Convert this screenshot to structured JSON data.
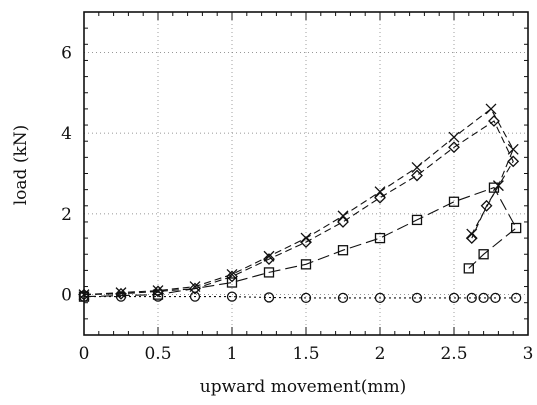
{
  "chart_data": {
    "type": "line",
    "xlabel": "upward movement(mm)",
    "ylabel": "load (kN)",
    "xlim": [
      0,
      3
    ],
    "ylim": [
      -1,
      7
    ],
    "xticks": [
      0,
      0.5,
      1,
      1.5,
      2,
      2.5,
      3
    ],
    "xtick_labels": [
      "0",
      "0.5",
      "1",
      "1.5",
      "2",
      "2.5",
      "3"
    ],
    "yticks": [
      0,
      2,
      4,
      6
    ],
    "ytick_labels": [
      "0",
      "2",
      "4",
      "6"
    ],
    "grid": true,
    "series": [
      {
        "marker": "x",
        "line": "dashed",
        "points": [
          [
            0,
            0
          ],
          [
            0.25,
            0.05
          ],
          [
            0.5,
            0.1
          ],
          [
            0.75,
            0.2
          ],
          [
            1.0,
            0.5
          ],
          [
            1.25,
            0.95
          ],
          [
            1.5,
            1.4
          ],
          [
            1.75,
            1.95
          ],
          [
            2.0,
            2.55
          ],
          [
            2.25,
            3.15
          ],
          [
            2.5,
            3.9
          ],
          [
            2.75,
            4.6
          ],
          [
            2.9,
            3.6
          ],
          [
            2.8,
            2.7
          ],
          [
            2.62,
            1.5
          ]
        ]
      },
      {
        "marker": "diamond",
        "line": "dashed",
        "points": [
          [
            0,
            0
          ],
          [
            0.25,
            0.02
          ],
          [
            0.5,
            0.08
          ],
          [
            0.75,
            0.15
          ],
          [
            1.0,
            0.45
          ],
          [
            1.25,
            0.88
          ],
          [
            1.5,
            1.3
          ],
          [
            1.75,
            1.8
          ],
          [
            2.0,
            2.4
          ],
          [
            2.25,
            2.95
          ],
          [
            2.5,
            3.65
          ],
          [
            2.77,
            4.3
          ],
          [
            2.9,
            3.3
          ],
          [
            2.72,
            2.2
          ],
          [
            2.62,
            1.4
          ]
        ]
      },
      {
        "marker": "square",
        "line": "long-dash",
        "points": [
          [
            0,
            -0.05
          ],
          [
            0.5,
            0.0
          ],
          [
            1.0,
            0.3
          ],
          [
            1.25,
            0.55
          ],
          [
            1.5,
            0.75
          ],
          [
            1.75,
            1.1
          ],
          [
            2.0,
            1.4
          ],
          [
            2.25,
            1.85
          ],
          [
            2.5,
            2.3
          ],
          [
            2.77,
            2.65
          ],
          [
            2.92,
            1.65
          ],
          [
            2.7,
            1.0
          ],
          [
            2.6,
            0.65
          ]
        ]
      },
      {
        "marker": "circle",
        "line": "dotted",
        "points": [
          [
            0,
            -0.05
          ],
          [
            0.25,
            -0.05
          ],
          [
            0.5,
            -0.05
          ],
          [
            0.75,
            -0.05
          ],
          [
            1.0,
            -0.05
          ],
          [
            1.25,
            -0.07
          ],
          [
            1.5,
            -0.08
          ],
          [
            1.75,
            -0.08
          ],
          [
            2.0,
            -0.08
          ],
          [
            2.25,
            -0.08
          ],
          [
            2.5,
            -0.08
          ],
          [
            2.62,
            -0.08
          ],
          [
            2.7,
            -0.08
          ],
          [
            2.78,
            -0.08
          ],
          [
            2.92,
            -0.08
          ]
        ]
      }
    ]
  }
}
